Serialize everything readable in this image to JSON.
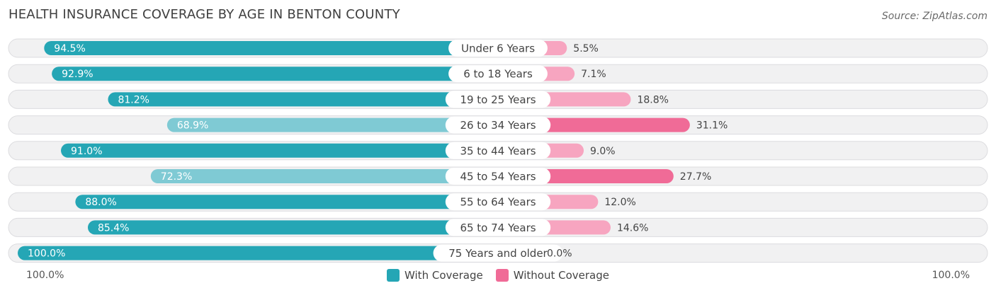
{
  "title": "HEALTH INSURANCE COVERAGE BY AGE IN BENTON COUNTY",
  "source": "Source: ZipAtlas.com",
  "colors": {
    "with_strong": "#25a6b5",
    "with_light": "#7fcad4",
    "without_strong": "#f06b97",
    "without_light": "#f7a5c0"
  },
  "chart_data": {
    "type": "bar",
    "orientation": "horizontal-diverging",
    "title": "HEALTH INSURANCE COVERAGE BY AGE IN BENTON COUNTY",
    "categories": [
      "Under 6 Years",
      "6 to 18 Years",
      "19 to 25 Years",
      "26 to 34 Years",
      "35 to 44 Years",
      "45 to 54 Years",
      "55 to 64 Years",
      "65 to 74 Years",
      "75 Years and older"
    ],
    "series": [
      {
        "name": "With Coverage",
        "values": [
          94.5,
          92.9,
          81.2,
          68.9,
          91.0,
          72.3,
          88.0,
          85.4,
          100.0
        ],
        "labels": [
          "94.5%",
          "92.9%",
          "81.2%",
          "68.9%",
          "91.0%",
          "72.3%",
          "88.0%",
          "85.4%",
          "100.0%"
        ]
      },
      {
        "name": "Without Coverage",
        "values": [
          5.5,
          7.1,
          18.8,
          31.1,
          9.0,
          27.7,
          12.0,
          14.6,
          0.0
        ],
        "labels": [
          "5.5%",
          "7.1%",
          "18.8%",
          "31.1%",
          "9.0%",
          "27.7%",
          "12.0%",
          "14.6%",
          "0.0%"
        ]
      }
    ],
    "xlim": [
      -100,
      100
    ],
    "axis_left_label": "100.0%",
    "axis_right_label": "100.0%",
    "legend_position": "bottom-center"
  }
}
